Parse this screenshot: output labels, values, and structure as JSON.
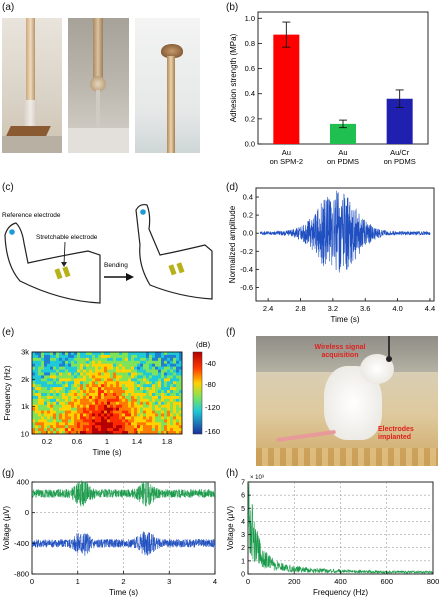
{
  "panels": {
    "a": "(a)",
    "b": "(b)",
    "c": "(c)",
    "d": "(d)",
    "e": "(e)",
    "f": "(f)",
    "g": "(g)",
    "h": "(h)"
  },
  "panel_c": {
    "reference_label": "Reference electrode",
    "stretchable_label": "Stretchable electrode",
    "bending_label": "Bending"
  },
  "panel_f": {
    "wireless_label": "Wireless signal acquisition",
    "implant_label": "Electrodes implanted"
  },
  "colorbar": {
    "unit": "(dB)",
    "ticks": [
      "-40",
      "-80",
      "-120",
      "-160"
    ]
  },
  "chart_data": [
    {
      "id": "b",
      "type": "bar",
      "categories": [
        "Au on SPM-2",
        "Au on PDMS",
        "Au/Cr on PDMS"
      ],
      "category_lines": [
        [
          "Au",
          "on SPM-2"
        ],
        [
          "Au",
          "on PDMS"
        ],
        [
          "Au/Cr",
          "on PDMS"
        ]
      ],
      "values": [
        0.87,
        0.16,
        0.36
      ],
      "errors": [
        0.1,
        0.03,
        0.07
      ],
      "colors": [
        "#ff0000",
        "#1fbf50",
        "#2020b0"
      ],
      "ylabel": "Adhesion strength (MPa)",
      "ylim": [
        0.0,
        1.05
      ],
      "yticks": [
        "0.0",
        "0.2",
        "0.4",
        "0.6",
        "0.8",
        "1.0"
      ]
    },
    {
      "id": "d",
      "type": "line",
      "xlabel": "Time (s)",
      "ylabel": "Normalized amplitude",
      "xlim": [
        2.25,
        4.45
      ],
      "ylim": [
        -0.75,
        0.5
      ],
      "xticks": [
        "2.4",
        "2.8",
        "3.2",
        "3.6",
        "4.0",
        "4.4"
      ],
      "yticks": [
        "0.4",
        "0.2",
        "0.0",
        "-0.2",
        "-0.4",
        "-0.6"
      ],
      "color": "#1f4fc0",
      "burst_center": 3.25,
      "peak_amplitude": 0.45
    },
    {
      "id": "e",
      "type": "heatmap",
      "xlabel": "Time (s)",
      "ylabel": "Frequency (Hz)",
      "xticks": [
        "0.2",
        "0.6",
        "1",
        "1.4",
        "1.8"
      ],
      "yticks": [
        "3k",
        "2k",
        "1k",
        "10"
      ],
      "xlim": [
        0,
        2.0
      ],
      "ylim": [
        10,
        3000
      ]
    },
    {
      "id": "g",
      "type": "line",
      "xlabel": "Time (s)",
      "ylabel": "Voltage (μV)",
      "xlim": [
        0,
        4
      ],
      "ylim": [
        -800,
        400
      ],
      "xticks": [
        "0",
        "1",
        "2",
        "3",
        "4"
      ],
      "yticks": [
        "400",
        "0",
        "-400",
        "-800"
      ],
      "series": [
        {
          "color": "#1a9a4a",
          "offset": 250,
          "bursts": [
            1.1,
            2.5
          ]
        },
        {
          "color": "#1f4fc0",
          "offset": -400,
          "bursts": [
            1.1,
            2.5
          ]
        }
      ]
    },
    {
      "id": "h",
      "type": "line",
      "xlabel": "Frequency (Hz)",
      "ylabel": "Voltage (μV)",
      "xlim": [
        0,
        800
      ],
      "ylim": [
        0,
        7
      ],
      "xticks": [
        "0",
        "200",
        "400",
        "600",
        "800"
      ],
      "yticks": [
        "7",
        "6",
        "5",
        "4",
        "3",
        "2",
        "1",
        "0"
      ],
      "exponent": "× 10³",
      "color": "#1a9a4a"
    }
  ]
}
